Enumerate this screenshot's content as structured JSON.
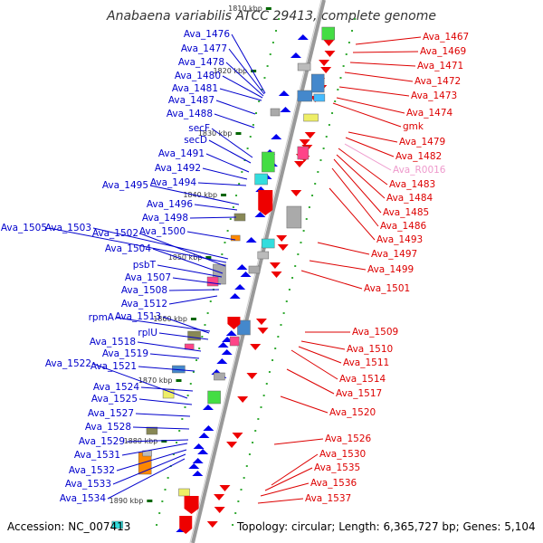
{
  "title": "Anabaena variabilis ATCC 29413, complete genome",
  "accession": "Accession: NC_007413",
  "topology": "Topology: circular; Length: 6,365,727 bp; Genes: 5,104",
  "colors": {
    "left_label": "#0000cc",
    "right_label": "#dd0000",
    "rna_label": "#ee99cc",
    "left_arrow": "#0000ee",
    "right_arrow": "#ee0000",
    "backbone": "#999999",
    "tick": "#006600",
    "dot": "#33aa33"
  },
  "kbp_ticks": [
    {
      "label": "1810 kbp"
    },
    {
      "label": "1820 kbp"
    },
    {
      "label": "1830 kbp"
    },
    {
      "label": "1840 kbp"
    },
    {
      "label": "1850 kbp"
    },
    {
      "label": "1860 kbp"
    },
    {
      "label": "1870 kbp"
    },
    {
      "label": "1880 kbp"
    },
    {
      "label": "1890 kbp"
    }
  ],
  "left_labels": [
    {
      "text": "Ava_1476"
    },
    {
      "text": "Ava_1477"
    },
    {
      "text": "Ava_1478"
    },
    {
      "text": "Ava_1480"
    },
    {
      "text": "Ava_1481"
    },
    {
      "text": "Ava_1487"
    },
    {
      "text": "Ava_1488"
    },
    {
      "text": "secF"
    },
    {
      "text": "secD"
    },
    {
      "text": "Ava_1491"
    },
    {
      "text": "Ava_1492"
    },
    {
      "text": "Ava_1494"
    },
    {
      "text": "Ava_1495"
    },
    {
      "text": "Ava_1496"
    },
    {
      "text": "Ava_1498"
    },
    {
      "text": "Ava_1505"
    },
    {
      "text": "Ava_1503"
    },
    {
      "text": "Ava_1500"
    },
    {
      "text": "Ava_1502"
    },
    {
      "text": "Ava_1504"
    },
    {
      "text": "psbT"
    },
    {
      "text": "Ava_1507"
    },
    {
      "text": "Ava_1508"
    },
    {
      "text": "Ava_1512"
    },
    {
      "text": "rpmA"
    },
    {
      "text": "Ava_1513"
    },
    {
      "text": "rplU"
    },
    {
      "text": "Ava_1518"
    },
    {
      "text": "Ava_1519"
    },
    {
      "text": "Ava_1522"
    },
    {
      "text": "Ava_1521"
    },
    {
      "text": "Ava_1524"
    },
    {
      "text": "Ava_1525"
    },
    {
      "text": "Ava_1527"
    },
    {
      "text": "Ava_1528"
    },
    {
      "text": "Ava_1529"
    },
    {
      "text": "Ava_1531"
    },
    {
      "text": "Ava_1532"
    },
    {
      "text": "Ava_1533"
    },
    {
      "text": "Ava_1534"
    }
  ],
  "right_labels": [
    {
      "text": "Ava_1467"
    },
    {
      "text": "Ava_1469"
    },
    {
      "text": "Ava_1471"
    },
    {
      "text": "Ava_1472"
    },
    {
      "text": "Ava_1473"
    },
    {
      "text": "Ava_1474"
    },
    {
      "text": "gmk"
    },
    {
      "text": "Ava_1479"
    },
    {
      "text": "Ava_1482"
    },
    {
      "text": "Ava_R0016"
    },
    {
      "text": "Ava_1483"
    },
    {
      "text": "Ava_1484"
    },
    {
      "text": "Ava_1485"
    },
    {
      "text": "Ava_1486"
    },
    {
      "text": "Ava_1493"
    },
    {
      "text": "Ava_1497"
    },
    {
      "text": "Ava_1499"
    },
    {
      "text": "Ava_1501"
    },
    {
      "text": "Ava_1509"
    },
    {
      "text": "Ava_1510"
    },
    {
      "text": "Ava_1511"
    },
    {
      "text": "Ava_1514"
    },
    {
      "text": "Ava_1517"
    },
    {
      "text": "Ava_1520"
    },
    {
      "text": "Ava_1526"
    },
    {
      "text": "Ava_1530"
    },
    {
      "text": "Ava_1535"
    },
    {
      "text": "Ava_1536"
    },
    {
      "text": "Ava_1537"
    }
  ]
}
